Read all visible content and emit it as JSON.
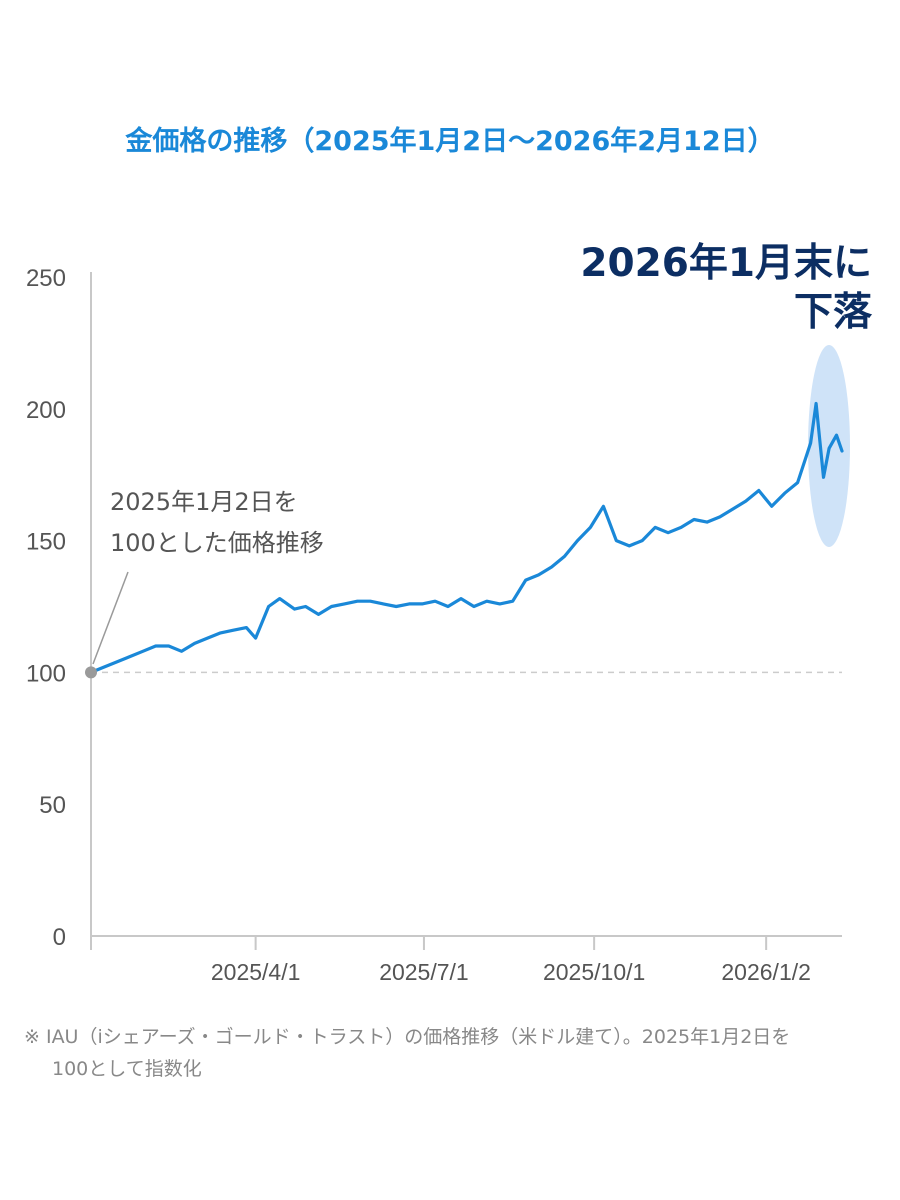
{
  "colors": {
    "accent": "#1a88d8",
    "line": "#1a88d8",
    "headline": "#0c2e63",
    "axis": "#c8c8c8",
    "baseline": "#cccccc",
    "highlight": "#cfe3f8",
    "marker": "#9a9a9a",
    "tick_text": "#555555",
    "note_text": "#888888"
  },
  "chart_data": {
    "type": "line",
    "title": "金価格の推移（2025年1月2日〜2026年2月12日）",
    "xlabel": "",
    "ylabel": "",
    "ylim": [
      0,
      250
    ],
    "yticks": [
      0,
      50,
      100,
      150,
      200,
      250
    ],
    "xlim": [
      "2025-01-02",
      "2026-02-12"
    ],
    "xticks": [
      {
        "date": "2025-04-01",
        "label": "2025/4/1"
      },
      {
        "date": "2025-07-01",
        "label": "2025/7/1"
      },
      {
        "date": "2025-10-01",
        "label": "2025/10/1"
      },
      {
        "date": "2026-01-02",
        "label": "2026/1/2"
      }
    ],
    "grid": false,
    "reference_line": {
      "y": 100,
      "style": "dashed"
    },
    "series": [
      {
        "x": [
          "2025-01-02",
          "2025-01-09",
          "2025-01-16",
          "2025-01-23",
          "2025-01-30",
          "2025-02-06",
          "2025-02-13",
          "2025-02-20",
          "2025-02-27",
          "2025-03-06",
          "2025-03-13",
          "2025-03-20",
          "2025-03-27",
          "2025-04-01",
          "2025-04-08",
          "2025-04-14",
          "2025-04-22",
          "2025-04-28",
          "2025-05-05",
          "2025-05-12",
          "2025-05-19",
          "2025-05-26",
          "2025-06-02",
          "2025-06-09",
          "2025-06-16",
          "2025-06-23",
          "2025-06-30",
          "2025-07-07",
          "2025-07-14",
          "2025-07-21",
          "2025-07-28",
          "2025-08-04",
          "2025-08-11",
          "2025-08-18",
          "2025-08-25",
          "2025-09-01",
          "2025-09-08",
          "2025-09-15",
          "2025-09-22",
          "2025-09-29",
          "2025-10-06",
          "2025-10-13",
          "2025-10-20",
          "2025-10-27",
          "2025-11-03",
          "2025-11-10",
          "2025-11-17",
          "2025-11-24",
          "2025-12-01",
          "2025-12-08",
          "2025-12-15",
          "2025-12-22",
          "2025-12-29",
          "2026-01-05",
          "2026-01-12",
          "2026-01-19",
          "2026-01-26",
          "2026-01-29",
          "2026-02-02",
          "2026-02-05",
          "2026-02-09",
          "2026-02-12"
        ],
        "values": [
          100,
          102,
          104,
          106,
          108,
          110,
          110,
          108,
          111,
          113,
          115,
          116,
          117,
          113,
          125,
          128,
          124,
          125,
          122,
          125,
          126,
          127,
          127,
          126,
          125,
          126,
          126,
          127,
          125,
          128,
          125,
          127,
          126,
          127,
          135,
          137,
          140,
          144,
          150,
          155,
          163,
          150,
          148,
          150,
          155,
          153,
          155,
          158,
          157,
          159,
          162,
          165,
          169,
          163,
          168,
          172,
          187,
          202,
          174,
          185,
          190,
          184
        ]
      }
    ],
    "annotations": [
      {
        "date": "2025-01-02",
        "value": 100,
        "text": [
          "2025年1月2日を",
          "100とした価格推移"
        ]
      },
      {
        "date_range": [
          "2026-01-20",
          "2026-02-12"
        ],
        "text": [
          "2026年1月末に",
          "下落"
        ]
      }
    ]
  },
  "footnote": {
    "line1": "※ IAU（iシェアーズ・ゴールド・トラスト）の価格推移（米ドル建て）。2025年1月2日を",
    "line2": "100として指数化"
  }
}
